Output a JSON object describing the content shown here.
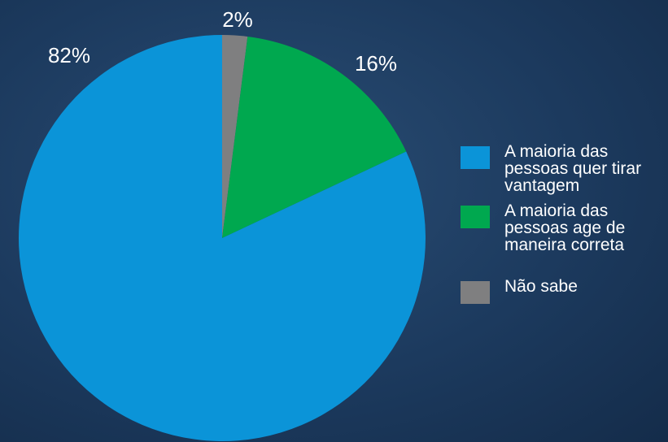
{
  "chart_data": {
    "type": "pie",
    "categories": [
      "Não sabe",
      "A maioria das pessoas age de maneira correta",
      "A maioria das pessoas quer tirar vantagem"
    ],
    "values": [
      2,
      16,
      82
    ],
    "value_labels": [
      "2%",
      "16%",
      "82%"
    ],
    "colors": [
      "#7f7f80",
      "#00a84f",
      "#0b94d8"
    ],
    "legend_order": [
      2,
      1,
      0
    ]
  }
}
